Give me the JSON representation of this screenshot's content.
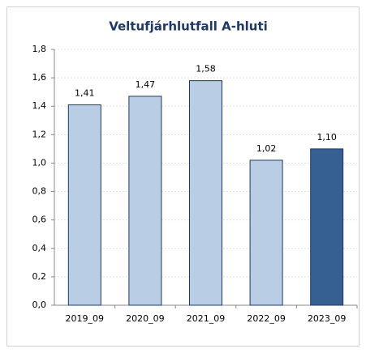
{
  "chart_data": {
    "type": "bar",
    "title": "Veltufjárhlutfall A-hluti",
    "categories": [
      "2019_09",
      "2020_09",
      "2021_09",
      "2022_09",
      "2023_09"
    ],
    "values": [
      1.41,
      1.47,
      1.58,
      1.02,
      1.1
    ],
    "value_labels": [
      "1,41",
      "1,47",
      "1,58",
      "1,02",
      "1,10"
    ],
    "colors": [
      "#b9cde5",
      "#b9cde5",
      "#b9cde5",
      "#b9cde5",
      "#366092"
    ],
    "ylim": [
      0,
      1.8
    ],
    "yticks": [
      {
        "value": 0,
        "label": "0,0"
      },
      {
        "value": 0.2,
        "label": "0,2"
      },
      {
        "value": 0.4,
        "label": "0,4"
      },
      {
        "value": 0.6,
        "label": "0,6"
      },
      {
        "value": 0.8,
        "label": "0,8"
      },
      {
        "value": 1.0,
        "label": "1,0"
      },
      {
        "value": 1.2,
        "label": "1,2"
      },
      {
        "value": 1.4,
        "label": "1,4"
      },
      {
        "value": 1.6,
        "label": "1,6"
      },
      {
        "value": 1.8,
        "label": "1,8"
      }
    ],
    "grid": true
  }
}
